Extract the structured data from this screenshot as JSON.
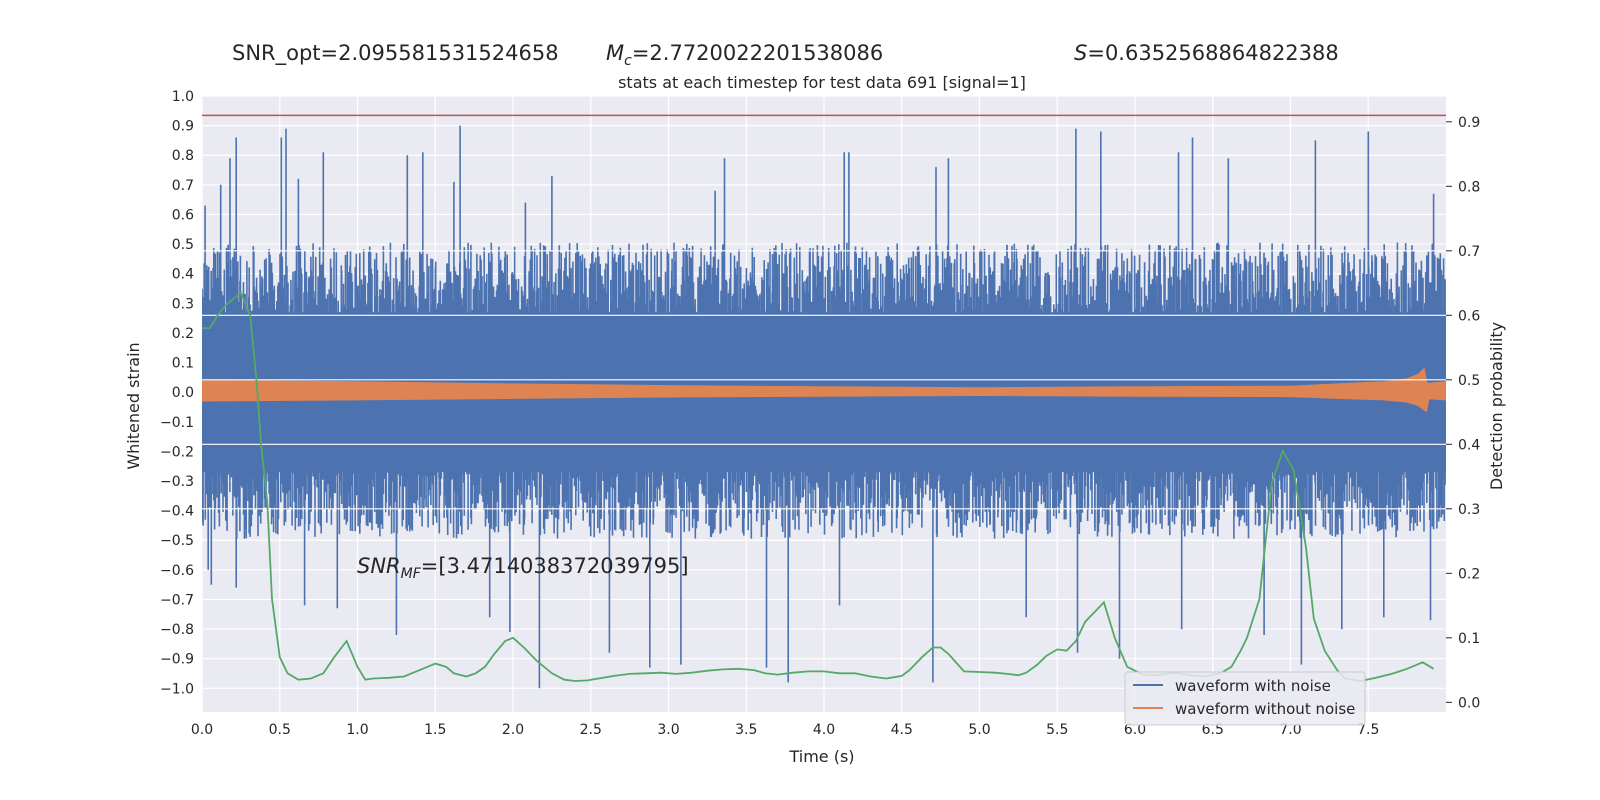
{
  "header": {
    "snr_opt": "SNR_opt=2.095581531524658",
    "mc_symbol": "M",
    "mc_sub": "c",
    "mc_value": "=2.7720022201538086",
    "s_symbol": "S",
    "s_value": "=0.6352568864822388",
    "snr_mf_symbol": "SNR",
    "snr_mf_sub": "MF",
    "snr_mf_value": "=[3.4714038372039795]"
  },
  "chart_data": {
    "type": "line",
    "title": "stats at each timestep for test data 691 [signal=1]",
    "xlabel": "Time (s)",
    "ylabel": "Whitened strain",
    "y2label": "Detection probability",
    "xlim": [
      0,
      8
    ],
    "ylim": [
      -1.08,
      1.0
    ],
    "y2lim": [
      -0.015,
      0.94
    ],
    "xticks": [
      "0.0",
      "0.5",
      "1.0",
      "1.5",
      "2.0",
      "2.5",
      "3.0",
      "3.5",
      "4.0",
      "4.5",
      "5.0",
      "5.5",
      "6.0",
      "6.5",
      "7.0",
      "7.5"
    ],
    "yticks": [
      "1.0",
      "0.9",
      "0.8",
      "0.7",
      "0.6",
      "0.5",
      "0.4",
      "0.3",
      "0.2",
      "0.1",
      "0.0",
      "−0.1",
      "−0.2",
      "−0.3",
      "−0.4",
      "−0.5",
      "−0.6",
      "−0.7",
      "−0.8",
      "−0.9",
      "−1.0"
    ],
    "y2ticks": [
      "0.9",
      "0.8",
      "0.7",
      "0.6",
      "0.5",
      "0.4",
      "0.3",
      "0.2",
      "0.1",
      "0.0"
    ],
    "threshold": 0.91,
    "legend": {
      "position": "lower-right",
      "entries": [
        "waveform with noise",
        "waveform without noise"
      ]
    },
    "colors": {
      "noise": "#4c72b0",
      "clean": "#dd8452",
      "prob": "#55a868",
      "threshold": "#c44e52",
      "background": "#eaeaf2",
      "grid": "#ffffff"
    },
    "noise_waveform": {
      "name": "waveform with noise",
      "envelope_peaks": [
        {
          "x": 0.02,
          "y": 0.63
        },
        {
          "x": 0.12,
          "y": 0.7
        },
        {
          "x": 0.18,
          "y": 0.79
        },
        {
          "x": 0.22,
          "y": 0.86
        },
        {
          "x": 0.51,
          "y": 0.86
        },
        {
          "x": 0.54,
          "y": 0.89
        },
        {
          "x": 0.62,
          "y": 0.72
        },
        {
          "x": 0.78,
          "y": 0.81
        },
        {
          "x": 1.32,
          "y": 0.8
        },
        {
          "x": 1.42,
          "y": 0.81
        },
        {
          "x": 1.66,
          "y": 0.9
        },
        {
          "x": 1.62,
          "y": 0.71
        },
        {
          "x": 2.08,
          "y": 0.64
        },
        {
          "x": 2.25,
          "y": 0.73
        },
        {
          "x": 3.3,
          "y": 0.68
        },
        {
          "x": 3.36,
          "y": 0.79
        },
        {
          "x": 4.13,
          "y": 0.81
        },
        {
          "x": 4.16,
          "y": 0.81
        },
        {
          "x": 4.72,
          "y": 0.76
        },
        {
          "x": 4.8,
          "y": 0.79
        },
        {
          "x": 5.62,
          "y": 0.89
        },
        {
          "x": 5.78,
          "y": 0.88
        },
        {
          "x": 6.28,
          "y": 0.81
        },
        {
          "x": 6.37,
          "y": 0.86
        },
        {
          "x": 6.6,
          "y": 0.79
        },
        {
          "x": 7.16,
          "y": 0.85
        },
        {
          "x": 7.5,
          "y": 0.88
        },
        {
          "x": 7.92,
          "y": 0.67
        }
      ],
      "envelope_troughs": [
        {
          "x": 0.04,
          "y": -0.6
        },
        {
          "x": 0.06,
          "y": -0.65
        },
        {
          "x": 0.22,
          "y": -0.66
        },
        {
          "x": 0.66,
          "y": -0.72
        },
        {
          "x": 0.87,
          "y": -0.73
        },
        {
          "x": 1.25,
          "y": -0.82
        },
        {
          "x": 1.85,
          "y": -0.76
        },
        {
          "x": 1.98,
          "y": -0.81
        },
        {
          "x": 2.17,
          "y": -1.0
        },
        {
          "x": 2.62,
          "y": -0.88
        },
        {
          "x": 2.88,
          "y": -0.93
        },
        {
          "x": 3.08,
          "y": -0.92
        },
        {
          "x": 3.63,
          "y": -0.93
        },
        {
          "x": 3.77,
          "y": -0.98
        },
        {
          "x": 4.1,
          "y": -0.72
        },
        {
          "x": 4.7,
          "y": -0.98
        },
        {
          "x": 5.3,
          "y": -0.76
        },
        {
          "x": 5.63,
          "y": -0.88
        },
        {
          "x": 5.9,
          "y": -0.9
        },
        {
          "x": 6.3,
          "y": -0.8
        },
        {
          "x": 6.83,
          "y": -0.82
        },
        {
          "x": 7.07,
          "y": -0.92
        },
        {
          "x": 7.33,
          "y": -0.8
        },
        {
          "x": 7.6,
          "y": -0.76
        },
        {
          "x": 7.9,
          "y": -0.77
        }
      ],
      "core_band": [
        -0.27,
        0.27
      ],
      "typical_band": [
        -0.45,
        0.46
      ]
    },
    "clean_waveform": {
      "name": "waveform without noise",
      "envelope": [
        {
          "x": 0.0,
          "a": 0.04
        },
        {
          "x": 1.0,
          "a": 0.035
        },
        {
          "x": 2.0,
          "a": 0.028
        },
        {
          "x": 3.0,
          "a": 0.022
        },
        {
          "x": 4.0,
          "a": 0.018
        },
        {
          "x": 5.0,
          "a": 0.015
        },
        {
          "x": 6.0,
          "a": 0.018
        },
        {
          "x": 7.0,
          "a": 0.02
        },
        {
          "x": 7.3,
          "a": 0.028
        },
        {
          "x": 7.6,
          "a": 0.035
        },
        {
          "x": 7.75,
          "a": 0.045
        },
        {
          "x": 7.82,
          "a": 0.06
        },
        {
          "x": 7.86,
          "a": 0.08
        },
        {
          "x": 7.875,
          "a": -0.065
        },
        {
          "x": 7.89,
          "a": 0.03
        },
        {
          "x": 8.0,
          "a": 0.035
        }
      ]
    },
    "detection_probability": {
      "x": [
        0.0,
        0.05,
        0.1,
        0.15,
        0.2,
        0.25,
        0.31,
        0.35,
        0.38,
        0.42,
        0.45,
        0.5,
        0.55,
        0.62,
        0.7,
        0.78,
        0.85,
        0.93,
        1.0,
        1.05,
        1.1,
        1.2,
        1.3,
        1.4,
        1.45,
        1.5,
        1.57,
        1.62,
        1.7,
        1.76,
        1.82,
        1.88,
        1.95,
        2.0,
        2.07,
        2.15,
        2.25,
        2.33,
        2.4,
        2.48,
        2.55,
        2.65,
        2.75,
        2.85,
        2.95,
        3.05,
        3.15,
        3.25,
        3.35,
        3.45,
        3.55,
        3.62,
        3.7,
        3.8,
        3.9,
        4.0,
        4.1,
        4.2,
        4.3,
        4.4,
        4.5,
        4.55,
        4.63,
        4.7,
        4.75,
        4.8,
        4.9,
        5.0,
        5.1,
        5.18,
        5.25,
        5.3,
        5.37,
        5.43,
        5.5,
        5.56,
        5.62,
        5.68,
        5.74,
        5.8,
        5.87,
        5.95,
        6.05,
        6.15,
        6.25,
        6.35,
        6.45,
        6.55,
        6.62,
        6.68,
        6.72,
        6.8,
        6.88,
        6.95,
        7.02,
        7.1,
        7.15,
        7.22,
        7.3,
        7.35,
        7.45,
        7.55,
        7.65,
        7.75,
        7.85,
        7.92
      ],
      "y": [
        0.58,
        0.58,
        0.6,
        0.615,
        0.625,
        0.635,
        0.6,
        0.5,
        0.4,
        0.31,
        0.16,
        0.07,
        0.045,
        0.035,
        0.037,
        0.045,
        0.07,
        0.095,
        0.055,
        0.035,
        0.037,
        0.038,
        0.04,
        0.05,
        0.055,
        0.06,
        0.055,
        0.045,
        0.04,
        0.045,
        0.055,
        0.075,
        0.095,
        0.1,
        0.085,
        0.065,
        0.045,
        0.035,
        0.033,
        0.034,
        0.037,
        0.041,
        0.044,
        0.045,
        0.046,
        0.044,
        0.046,
        0.049,
        0.051,
        0.052,
        0.05,
        0.045,
        0.043,
        0.046,
        0.048,
        0.048,
        0.045,
        0.045,
        0.04,
        0.037,
        0.041,
        0.05,
        0.07,
        0.085,
        0.085,
        0.075,
        0.048,
        0.047,
        0.046,
        0.044,
        0.042,
        0.046,
        0.058,
        0.072,
        0.082,
        0.08,
        0.095,
        0.125,
        0.14,
        0.155,
        0.1,
        0.055,
        0.043,
        0.042,
        0.046,
        0.042,
        0.04,
        0.045,
        0.055,
        0.08,
        0.1,
        0.16,
        0.34,
        0.39,
        0.36,
        0.24,
        0.13,
        0.08,
        0.05,
        0.037,
        0.033,
        0.038,
        0.044,
        0.052,
        0.062,
        0.052
      ]
    }
  }
}
